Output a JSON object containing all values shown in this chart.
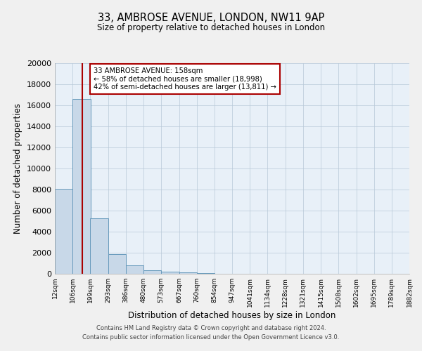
{
  "title_line1": "33, AMBROSE AVENUE, LONDON, NW11 9AP",
  "title_line2": "Size of property relative to detached houses in London",
  "xlabel": "Distribution of detached houses by size in London",
  "ylabel": "Number of detached properties",
  "bar_color": "#c8d8e8",
  "bar_edge_color": "#6699bb",
  "background_color": "#e8f0f8",
  "grid_color": "#b8c8d8",
  "property_line_value": 158,
  "property_line_color": "#aa0000",
  "annotation_text": "33 AMBROSE AVENUE: 158sqm\n← 58% of detached houses are smaller (18,998)\n42% of semi-detached houses are larger (13,811) →",
  "annotation_box_color": "#ffffff",
  "annotation_box_edge": "#aa0000",
  "bins": [
    12,
    106,
    199,
    293,
    386,
    480,
    573,
    667,
    760,
    854,
    947,
    1041,
    1134,
    1228,
    1321,
    1415,
    1508,
    1602,
    1695,
    1789,
    1882
  ],
  "bin_labels": [
    "12sqm",
    "106sqm",
    "199sqm",
    "293sqm",
    "386sqm",
    "480sqm",
    "573sqm",
    "667sqm",
    "760sqm",
    "854sqm",
    "947sqm",
    "1041sqm",
    "1134sqm",
    "1228sqm",
    "1321sqm",
    "1415sqm",
    "1508sqm",
    "1602sqm",
    "1695sqm",
    "1789sqm",
    "1882sqm"
  ],
  "bar_heights": [
    8100,
    16600,
    5300,
    1850,
    780,
    350,
    200,
    130,
    90,
    0,
    0,
    0,
    0,
    0,
    0,
    0,
    0,
    0,
    0,
    0
  ],
  "ylim": [
    0,
    20000
  ],
  "yticks": [
    0,
    2000,
    4000,
    6000,
    8000,
    10000,
    12000,
    14000,
    16000,
    18000,
    20000
  ],
  "footer_line1": "Contains HM Land Registry data © Crown copyright and database right 2024.",
  "footer_line2": "Contains public sector information licensed under the Open Government Licence v3.0."
}
